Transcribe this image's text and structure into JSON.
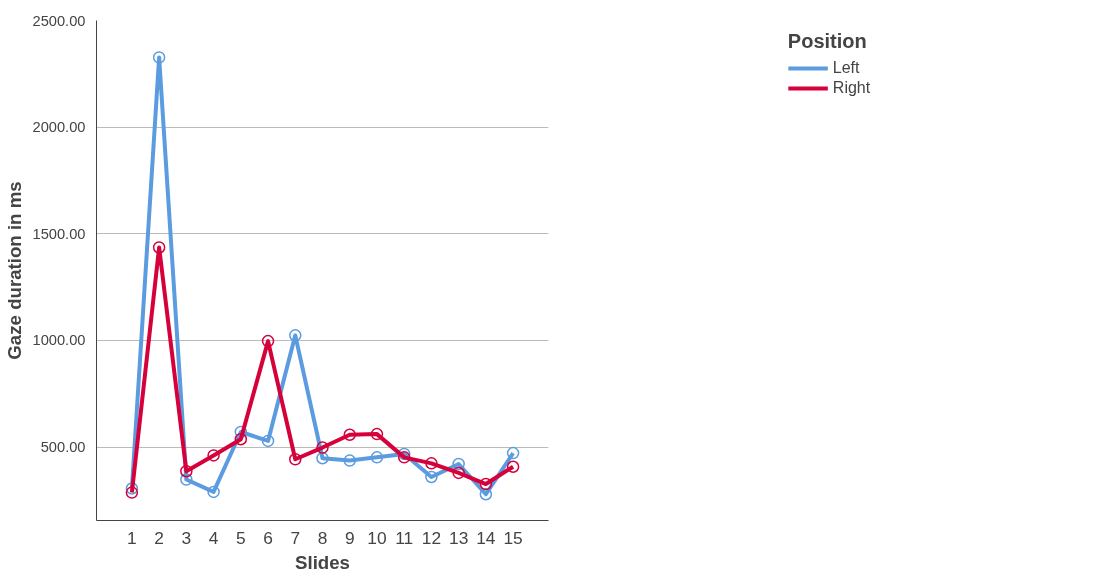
{
  "chart_data": {
    "type": "line",
    "xlabel": "Slides",
    "ylabel": "Gaze duration in ms",
    "legend_title": "Position",
    "legend": "top right",
    "grid": "y",
    "marker": "circle",
    "line_style": "solid",
    "x": [
      1,
      2,
      3,
      4,
      5,
      6,
      7,
      8,
      9,
      10,
      11,
      12,
      13,
      14,
      15
    ],
    "xlim": [
      -0.3,
      16.3
    ],
    "xticks": [
      1,
      2,
      3,
      4,
      5,
      6,
      7,
      8,
      9,
      10,
      11,
      12,
      13,
      14,
      15
    ],
    "ylim": [
      156,
      2500
    ],
    "yticks": [
      {
        "value": 500,
        "label": "500.00"
      },
      {
        "value": 1000,
        "label": "1000.00"
      },
      {
        "value": 1500,
        "label": "1500.00"
      },
      {
        "value": 2000,
        "label": "2000.00"
      },
      {
        "value": 2500,
        "label": "2500.00"
      }
    ],
    "series": [
      {
        "name": "Left",
        "color": "#5b9be0",
        "values": [
          306,
          2327,
          348,
          290,
          571,
          529,
          1024,
          448,
          437,
          452,
          468,
          360,
          421,
          279,
          472
        ]
      },
      {
        "name": "Right",
        "color": "#d6003a",
        "values": [
          287,
          1436,
          387,
          461,
          537,
          997,
          443,
          498,
          558,
          561,
          452,
          424,
          379,
          327,
          408
        ]
      }
    ]
  }
}
